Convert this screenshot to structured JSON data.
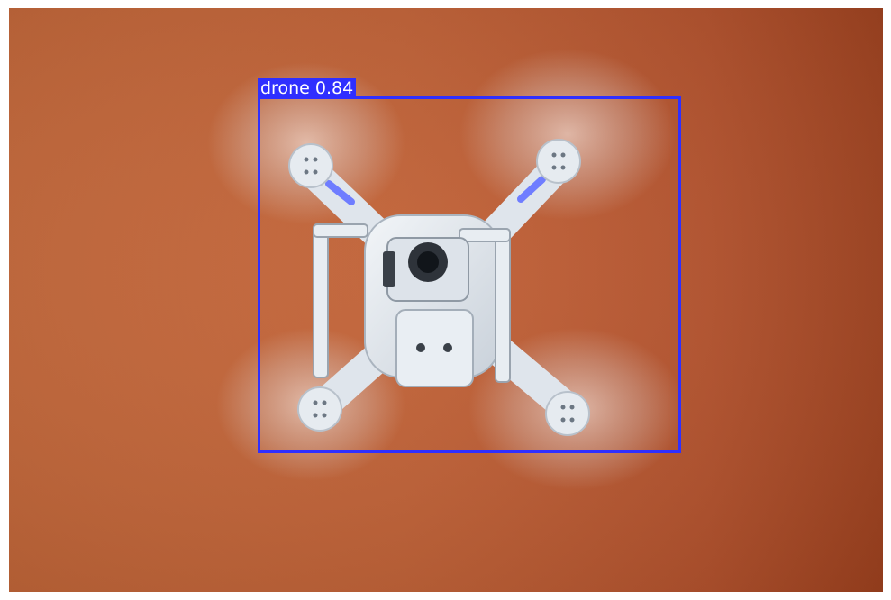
{
  "detection": {
    "label": "drone 0.84",
    "class_name": "drone",
    "confidence": 0.84,
    "box_color": "#2f2fff"
  },
  "scene": {
    "background_color": "#c0602f",
    "subject_icon": "quadcopter-drone"
  }
}
